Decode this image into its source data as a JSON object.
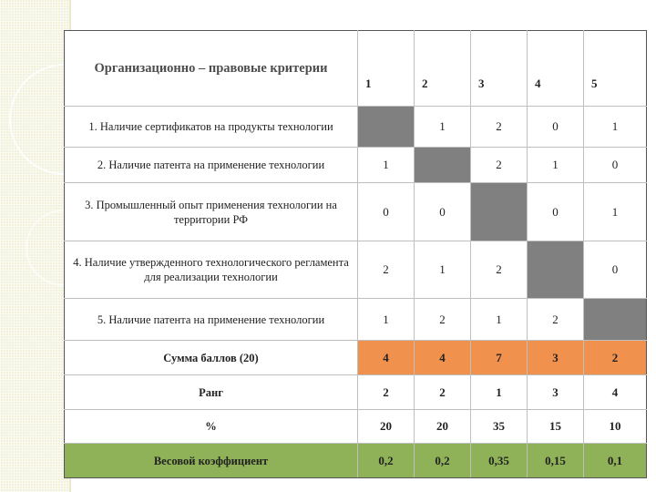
{
  "table": {
    "header_title": "Организационно – правовые критерии",
    "columns": [
      "1",
      "2",
      "3",
      "4",
      "5"
    ],
    "criteria": [
      {
        "label": "1. Наличие сертификатов на продукты технологии",
        "values": [
          "",
          "1",
          "2",
          "0",
          "1"
        ]
      },
      {
        "label": "2. Наличие патента на применение технологии",
        "values": [
          "1",
          "",
          "2",
          "1",
          "0"
        ]
      },
      {
        "label": "3. Промышленный опыт применения технологии на территории РФ",
        "values": [
          "0",
          "0",
          "",
          "0",
          "1"
        ]
      },
      {
        "label": "4. Наличие утвержденного технологического регламента для реализации технологии",
        "values": [
          "2",
          "1",
          "2",
          "",
          "0"
        ]
      },
      {
        "label": "5. Наличие патента на применение технологии",
        "values": [
          "1",
          "2",
          "1",
          "2",
          ""
        ]
      }
    ],
    "summary": [
      {
        "label": "Сумма баллов (20)",
        "values": [
          "4",
          "4",
          "7",
          "3",
          "2"
        ]
      },
      {
        "label": "Ранг",
        "values": [
          "2",
          "2",
          "1",
          "3",
          "4"
        ]
      },
      {
        "label": "%",
        "values": [
          "20",
          "20",
          "35",
          "15",
          "10"
        ]
      },
      {
        "label": "Весовой коэффициент",
        "values": [
          "0,2",
          "0,2",
          "0,35",
          "0,15",
          "0,1"
        ]
      }
    ]
  },
  "colors": {
    "diagonal": "#808080",
    "sum_row": "#f0914d",
    "weight_row": "#8fb158"
  }
}
